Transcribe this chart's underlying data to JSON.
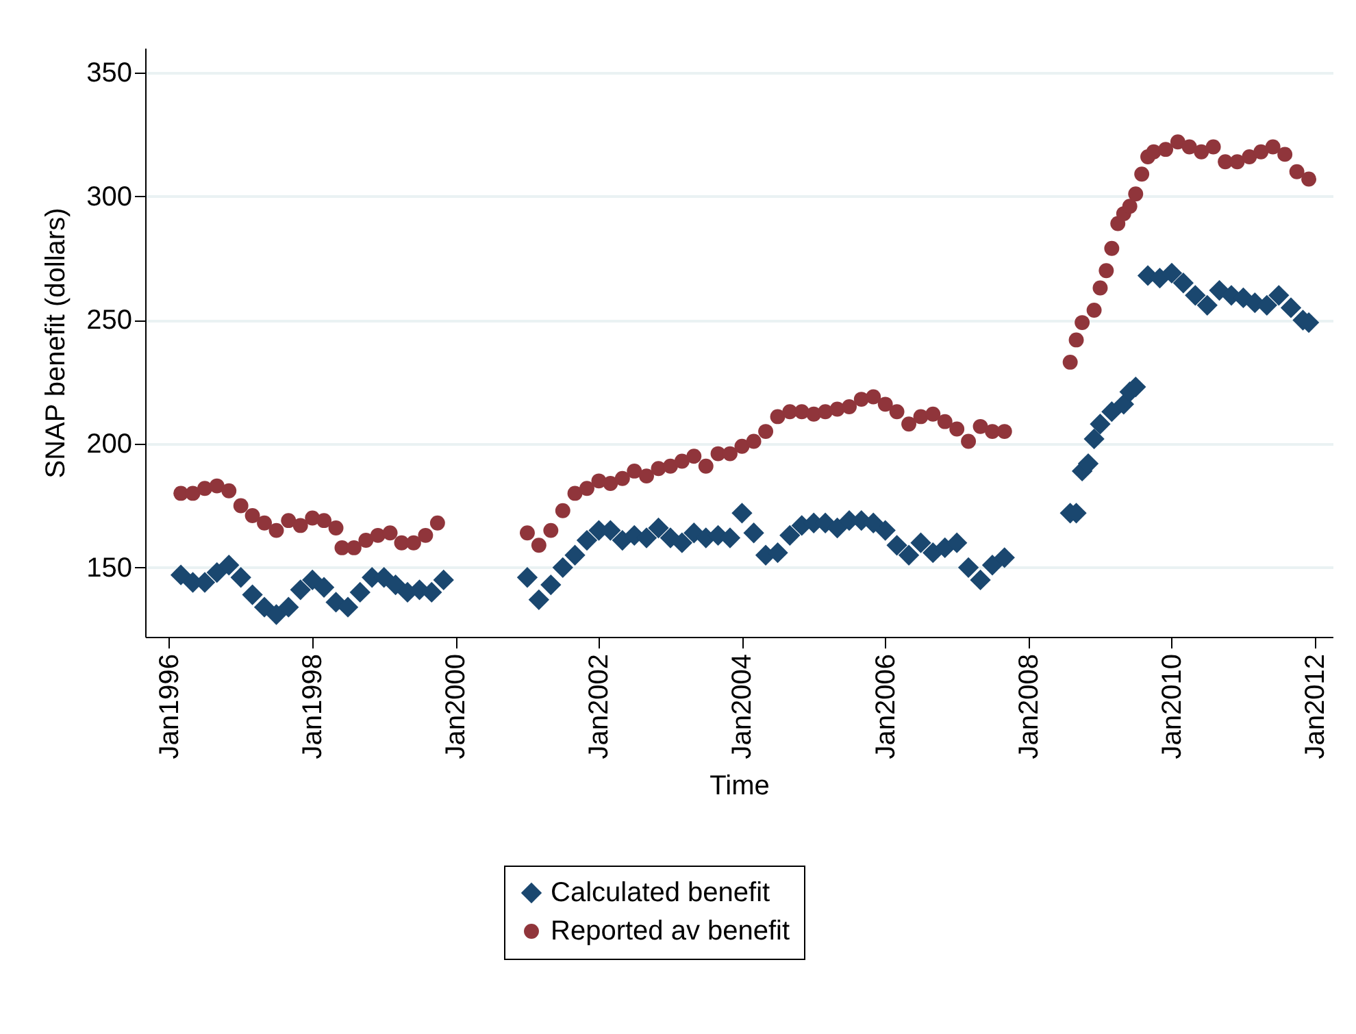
{
  "chart_data": {
    "type": "scatter",
    "xlabel": "Time",
    "ylabel": "SNAP benefit (dollars)",
    "xlim": [
      "1995-09",
      "2012-04"
    ],
    "ylim": [
      122,
      360
    ],
    "yticks": [
      150,
      200,
      250,
      300,
      350
    ],
    "xticks": [
      {
        "value": "1996-01",
        "label": "Jan1996"
      },
      {
        "value": "1998-01",
        "label": "Jan1998"
      },
      {
        "value": "2000-01",
        "label": "Jan2000"
      },
      {
        "value": "2002-01",
        "label": "Jan2002"
      },
      {
        "value": "2004-01",
        "label": "Jan2004"
      },
      {
        "value": "2006-01",
        "label": "Jan2006"
      },
      {
        "value": "2008-01",
        "label": "Jan2008"
      },
      {
        "value": "2010-01",
        "label": "Jan2010"
      },
      {
        "value": "2012-01",
        "label": "Jan2012"
      }
    ],
    "grid": "y",
    "legend": "bottom",
    "series": [
      {
        "name": "Calculated benefit",
        "color": "#1a476f",
        "marker": "diamond",
        "x": [
          "1996-03",
          "1996-05",
          "1996-07",
          "1996-09",
          "1996-11",
          "1997-01",
          "1997-03",
          "1997-05",
          "1997-07",
          "1997-09",
          "1997-11",
          "1998-01",
          "1998-03",
          "1998-05",
          "1998-07",
          "1998-09",
          "1998-11",
          "1999-01",
          "1999-03",
          "1999-05",
          "1999-07",
          "1999-09",
          "1999-11",
          "2001-01",
          "2001-03",
          "2001-05",
          "2001-07",
          "2001-09",
          "2001-11",
          "2002-01",
          "2002-03",
          "2002-05",
          "2002-07",
          "2002-09",
          "2002-11",
          "2003-01",
          "2003-03",
          "2003-05",
          "2003-07",
          "2003-09",
          "2003-11",
          "2004-01",
          "2004-03",
          "2004-05",
          "2004-07",
          "2004-09",
          "2004-11",
          "2005-01",
          "2005-03",
          "2005-05",
          "2005-07",
          "2005-09",
          "2005-11",
          "2006-01",
          "2006-03",
          "2006-05",
          "2006-07",
          "2006-09",
          "2006-11",
          "2007-01",
          "2007-03",
          "2007-05",
          "2007-07",
          "2007-09",
          "2008-08",
          "2008-09",
          "2008-10",
          "2008-11",
          "2008-12",
          "2009-01",
          "2009-03",
          "2009-05",
          "2009-06",
          "2009-07",
          "2009-09",
          "2009-11",
          "2010-01",
          "2010-03",
          "2010-05",
          "2010-07",
          "2010-09",
          "2010-11",
          "2011-01",
          "2011-03",
          "2011-05",
          "2011-07",
          "2011-09",
          "2011-11",
          "2011-12"
        ],
        "values": [
          147,
          144,
          144,
          148,
          151,
          146,
          139,
          134,
          131,
          134,
          141,
          145,
          142,
          136,
          134,
          140,
          146,
          146,
          143,
          140,
          141,
          140,
          145,
          146,
          137,
          143,
          150,
          155,
          161,
          165,
          165,
          161,
          163,
          162,
          166,
          162,
          160,
          164,
          162,
          163,
          162,
          172,
          164,
          155,
          156,
          163,
          167,
          168,
          168,
          166,
          169,
          169,
          168,
          165,
          159,
          155,
          160,
          156,
          158,
          160,
          150,
          145,
          151,
          154,
          172,
          172,
          189,
          192,
          202,
          208,
          213,
          216,
          221,
          223,
          268,
          267,
          269,
          265,
          260,
          256,
          262,
          260,
          259,
          257,
          256,
          260,
          255,
          250,
          249
        ]
      },
      {
        "name": "Reported av benefit",
        "color": "#90353b",
        "marker": "circle",
        "x": [
          "1996-03",
          "1996-05",
          "1996-07",
          "1996-09",
          "1996-11",
          "1997-01",
          "1997-03",
          "1997-05",
          "1997-07",
          "1997-09",
          "1997-11",
          "1998-01",
          "1998-03",
          "1998-05",
          "1998-06",
          "1998-08",
          "1998-10",
          "1998-12",
          "1999-02",
          "1999-04",
          "1999-06",
          "1999-08",
          "1999-10",
          "2001-01",
          "2001-03",
          "2001-05",
          "2001-07",
          "2001-09",
          "2001-11",
          "2002-01",
          "2002-03",
          "2002-05",
          "2002-07",
          "2002-09",
          "2002-11",
          "2003-01",
          "2003-03",
          "2003-05",
          "2003-07",
          "2003-09",
          "2003-11",
          "2004-01",
          "2004-03",
          "2004-05",
          "2004-07",
          "2004-09",
          "2004-11",
          "2005-01",
          "2005-03",
          "2005-05",
          "2005-07",
          "2005-09",
          "2005-11",
          "2006-01",
          "2006-03",
          "2006-05",
          "2006-07",
          "2006-09",
          "2006-11",
          "2007-01",
          "2007-03",
          "2007-05",
          "2007-07",
          "2007-09",
          "2008-08",
          "2008-09",
          "2008-10",
          "2008-12",
          "2009-01",
          "2009-02",
          "2009-03",
          "2009-04",
          "2009-05",
          "2009-06",
          "2009-07",
          "2009-08",
          "2009-09",
          "2009-10",
          "2009-12",
          "2010-02",
          "2010-04",
          "2010-06",
          "2010-08",
          "2010-10",
          "2010-12",
          "2011-02",
          "2011-04",
          "2011-06",
          "2011-08",
          "2011-10",
          "2011-12"
        ],
        "values": [
          180,
          180,
          182,
          183,
          181,
          175,
          171,
          168,
          165,
          169,
          167,
          170,
          169,
          166,
          158,
          158,
          161,
          163,
          164,
          160,
          160,
          163,
          168,
          164,
          159,
          165,
          173,
          180,
          182,
          185,
          184,
          186,
          189,
          187,
          190,
          191,
          193,
          195,
          191,
          196,
          196,
          199,
          201,
          205,
          211,
          213,
          213,
          212,
          213,
          214,
          215,
          218,
          219,
          216,
          213,
          208,
          211,
          212,
          209,
          206,
          201,
          207,
          205,
          205,
          233,
          242,
          249,
          254,
          263,
          270,
          279,
          289,
          293,
          296,
          301,
          309,
          316,
          318,
          319,
          322,
          320,
          318,
          320,
          314,
          314,
          316,
          318,
          320,
          317,
          310,
          307
        ]
      }
    ]
  }
}
